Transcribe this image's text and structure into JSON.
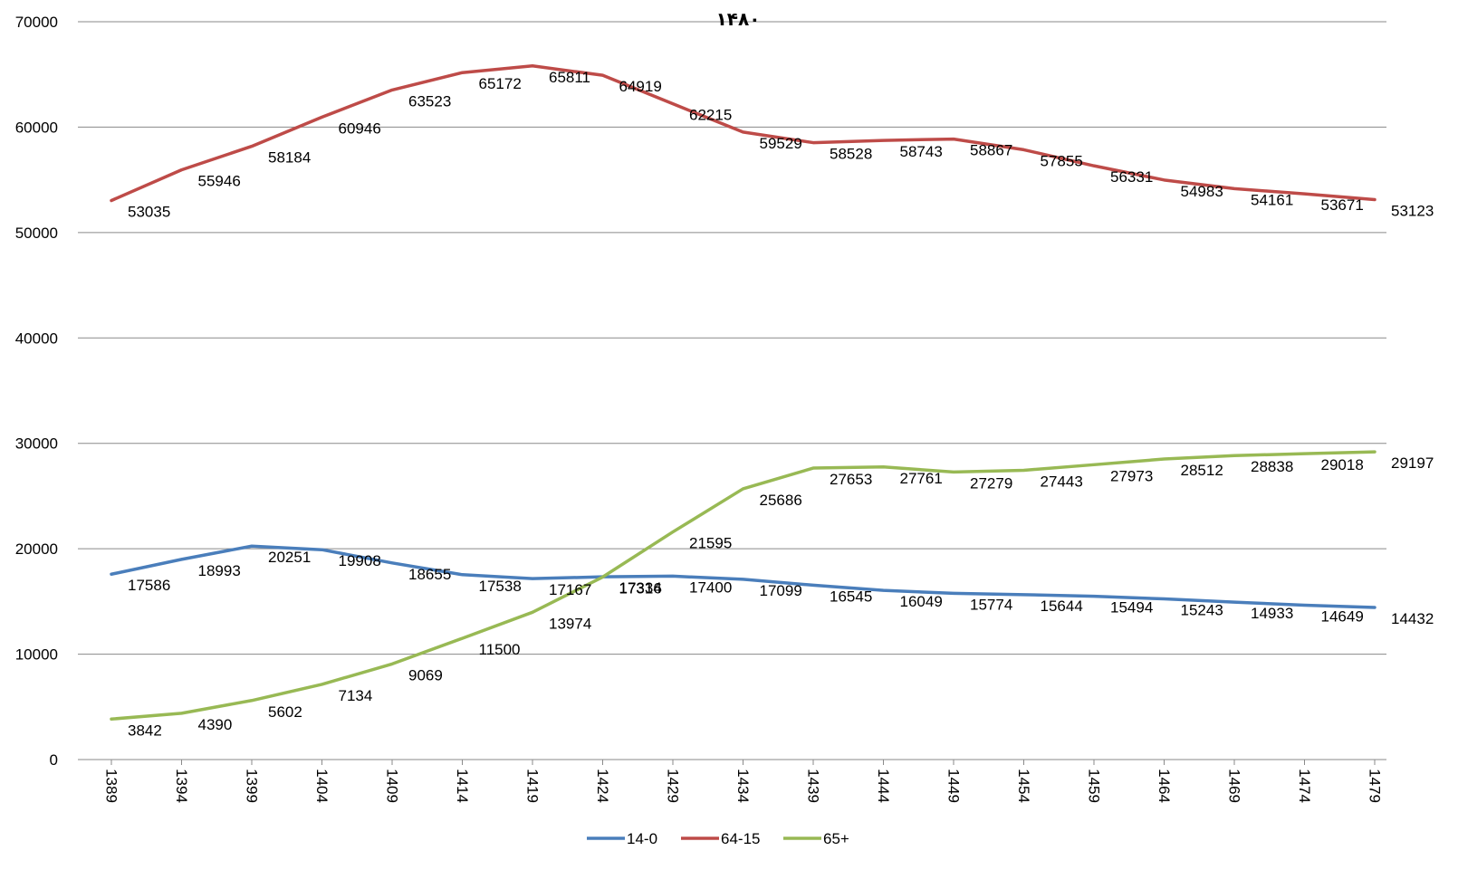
{
  "chart_data": {
    "type": "line",
    "title": "۱۴۸۰",
    "xlabel": "",
    "ylabel": "",
    "ylim": [
      0,
      70000
    ],
    "yticks": [
      0,
      10000,
      20000,
      30000,
      40000,
      50000,
      60000,
      70000
    ],
    "grid": true,
    "legend_position": "bottom",
    "x": [
      1389,
      1394,
      1399,
      1404,
      1409,
      1414,
      1419,
      1424,
      1429,
      1434,
      1439,
      1444,
      1449,
      1454,
      1459,
      1464,
      1469,
      1474,
      1479
    ],
    "series": [
      {
        "name": "14-0",
        "color": "#4A7EBB",
        "values": [
          17586,
          18993,
          20251,
          19908,
          18655,
          17538,
          17167,
          17334,
          17400,
          17099,
          16545,
          16049,
          15774,
          15644,
          15494,
          15243,
          14933,
          14649,
          14432
        ],
        "labels": [
          "17586",
          "18993",
          "20251",
          "19908",
          "18655",
          "17538",
          "17167",
          "17334",
          "17400",
          "17099",
          "16545",
          "16049",
          "15774",
          "15644",
          "15494",
          "15243",
          "14933",
          "14649",
          "14432"
        ]
      },
      {
        "name": "64-15",
        "color": "#BE4B48",
        "values": [
          53035,
          55946,
          58184,
          60946,
          63523,
          65172,
          65811,
          64919,
          62215,
          59529,
          58528,
          58743,
          58867,
          57855,
          56331,
          54983,
          54161,
          53671,
          53123
        ],
        "labels": [
          "53035",
          "55946",
          "58184",
          "60946",
          "63523",
          "65172",
          "65811",
          "64919",
          "62215",
          "59529",
          "58528",
          "58743",
          "58867",
          "57855",
          "56331",
          "54983",
          "54161",
          "53671",
          "53123"
        ]
      },
      {
        "name": "65+",
        "color": "#98B954",
        "values": [
          3842,
          4390,
          5602,
          7134,
          9069,
          11500,
          13974,
          17316,
          21595,
          25686,
          27653,
          27761,
          27279,
          27443,
          27973,
          28512,
          28838,
          29018,
          29197
        ],
        "labels": [
          "3842",
          "4390",
          "5602",
          "7134",
          "9069",
          "11500",
          "13974",
          "17316",
          "21595",
          "25686",
          "27653",
          "27761",
          "27279",
          "27443",
          "27973",
          "28512",
          "28838",
          "29018",
          "29197"
        ]
      }
    ]
  }
}
